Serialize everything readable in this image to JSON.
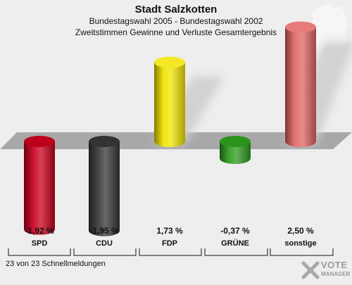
{
  "header": {
    "title": "Stadt Salzkotten",
    "subtitle1": "Bundestagswahl 2005 - Bundestagswahl 2002",
    "subtitle2": "Zweitstimmen Gewinne und Verluste Gesamtergebnis"
  },
  "footer": {
    "text": "23 von 23 Schnellmeldungen"
  },
  "logo": {
    "line1": "VOTE",
    "line2": "MANAGER"
  },
  "chart_data": {
    "type": "bar",
    "title": "Stadt Salzkotten",
    "categories": [
      "SPD",
      "CDU",
      "FDP",
      "GRÜNE",
      "sonstige"
    ],
    "values": [
      -1.92,
      -1.95,
      1.73,
      -0.37,
      2.5
    ],
    "value_labels": [
      "-1,92 %",
      "-1,95 %",
      "1,73 %",
      "-0,37 %",
      "2,50 %"
    ],
    "colors": [
      "#c8001e",
      "#363636",
      "#f2e400",
      "#2e9c1e",
      "#e06464"
    ],
    "ylim": [
      -2.0,
      2.6
    ],
    "grid": false,
    "legend": "none"
  }
}
